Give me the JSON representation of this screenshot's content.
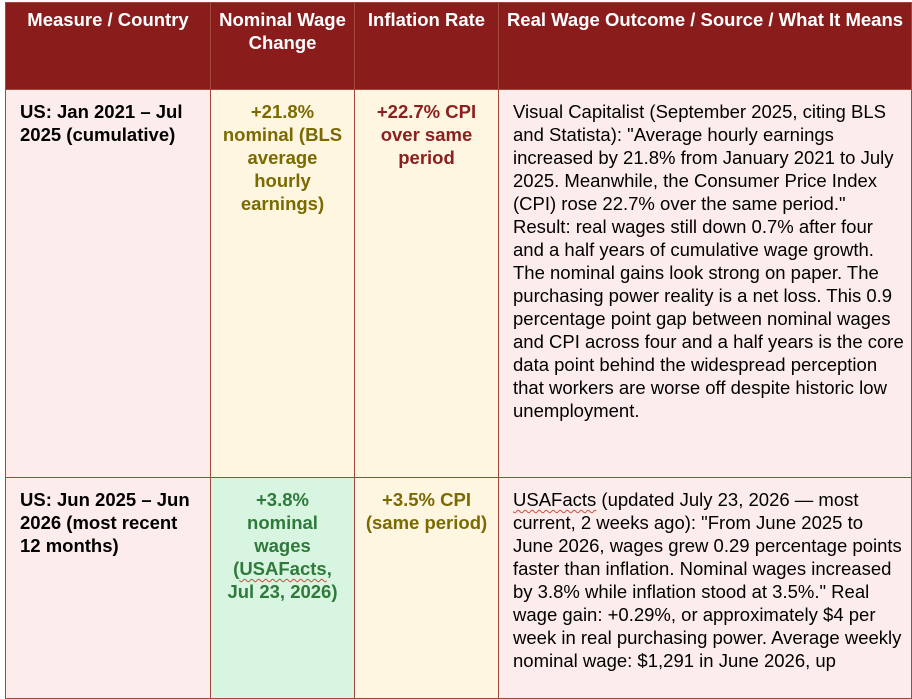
{
  "headers": {
    "measure": "Measure / Country",
    "wage": "Nominal Wage Change",
    "inflation": "Inflation Rate",
    "outcome": "Real Wage Outcome / Source / What It Means"
  },
  "rows": [
    {
      "measure": "US: Jan 2021 – Jul 2025 (cumulative)",
      "wage": "+21.8% nominal (BLS average hourly earnings)",
      "inflation": "+22.7% CPI over same period",
      "outcome": "Visual Capitalist (September 2025, citing BLS and Statista): \"Average hourly earnings increased by 21.8% from January 2021 to July 2025. Meanwhile, the Consumer Price Index (CPI) rose 22.7% over the same period.\" Result: real wages still down 0.7% after four and a half years of cumulative wage growth. The nominal gains look strong on paper. The purchasing power reality is a net loss. This 0.9 percentage point gap between nominal wages and CPI across four and a half years is the core data point behind the widespread perception that workers are worse off despite historic low unemployment.",
      "colors": {
        "wage_bg": "#fff6e2",
        "wage_text": "#7a6a00",
        "inflation_text": "#8a2020"
      }
    },
    {
      "measure": "US: Jun 2025 – Jun 2026 (most recent 12 months)",
      "wage_lead": "+3.8% nominal wages (",
      "wage_source": "USAFacts",
      "wage_tail": ", Jul 23, 2026)",
      "inflation": "+3.5% CPI (same period)",
      "outcome_source": "USAFacts",
      "outcome_rest": " (updated July 23, 2026 — most current, 2 weeks ago): \"From June 2025 to June 2026, wages grew 0.29 percentage points faster than inflation. Nominal wages increased by 3.8% while inflation stood at 3.5%.\" Real wage gain: +0.29%, or approximately $4 per week in real purchasing power. Average weekly nominal wage: $1,291 in June 2026, up",
      "colors": {
        "wage_bg": "#d8f5e2",
        "wage_text": "#2f7a3a",
        "inflation_text": "#7a6a00"
      }
    }
  ],
  "colors": {
    "header_bg": "#8a1c1c",
    "border": "#a14a3c",
    "row_bg": "#fdecec"
  }
}
